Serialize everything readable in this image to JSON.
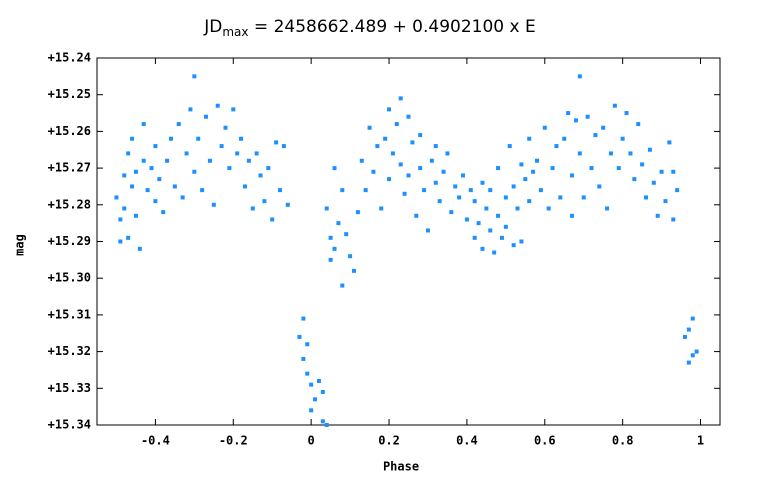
{
  "chart_data": {
    "type": "scatter",
    "title_main": "JD",
    "title_sub": "max",
    "title_rest": " = 2458662.489 + 0.4902100 x E",
    "x_label": "Phase",
    "y_label": "mag",
    "color": "#1e8fff",
    "xlim": [
      -0.55,
      1.05
    ],
    "xticks": [
      -0.4,
      -0.2,
      0,
      0.2,
      0.4,
      0.6,
      0.8,
      1
    ],
    "ylim": [
      15.24,
      15.34
    ],
    "y_inverted": true,
    "yticks": [
      {
        "value": 15.24,
        "label": "+15.24"
      },
      {
        "value": 15.25,
        "label": "+15.25"
      },
      {
        "value": 15.26,
        "label": "+15.26"
      },
      {
        "value": 15.27,
        "label": "+15.27"
      },
      {
        "value": 15.28,
        "label": "+15.28"
      },
      {
        "value": 15.29,
        "label": "+15.29"
      },
      {
        "value": 15.3,
        "label": "+15.30"
      },
      {
        "value": 15.31,
        "label": "+15.31"
      },
      {
        "value": 15.32,
        "label": "+15.32"
      },
      {
        "value": 15.33,
        "label": "+15.33"
      },
      {
        "value": 15.34,
        "label": "+15.34"
      }
    ],
    "x": [
      -0.5,
      -0.49,
      -0.49,
      -0.48,
      -0.48,
      -0.47,
      -0.47,
      -0.46,
      -0.46,
      -0.45,
      -0.45,
      -0.44,
      -0.43,
      -0.43,
      -0.42,
      -0.41,
      -0.4,
      -0.4,
      -0.39,
      -0.38,
      -0.37,
      -0.36,
      -0.35,
      -0.34,
      -0.33,
      -0.32,
      -0.31,
      -0.3,
      -0.3,
      -0.29,
      -0.28,
      -0.27,
      -0.26,
      -0.25,
      -0.24,
      -0.23,
      -0.22,
      -0.21,
      -0.2,
      -0.19,
      -0.18,
      -0.17,
      -0.16,
      -0.15,
      -0.14,
      -0.13,
      -0.12,
      -0.11,
      -0.1,
      -0.09,
      -0.08,
      -0.07,
      -0.06,
      -0.03,
      -0.02,
      -0.02,
      -0.01,
      -0.01,
      0.0,
      0.0,
      0.01,
      0.02,
      0.03,
      0.03,
      0.04,
      0.04,
      0.05,
      0.05,
      0.06,
      0.06,
      0.07,
      0.08,
      0.08,
      0.09,
      0.1,
      0.11,
      0.12,
      0.13,
      0.14,
      0.15,
      0.16,
      0.17,
      0.18,
      0.19,
      0.2,
      0.2,
      0.21,
      0.22,
      0.23,
      0.23,
      0.24,
      0.25,
      0.25,
      0.26,
      0.27,
      0.28,
      0.28,
      0.29,
      0.3,
      0.31,
      0.32,
      0.32,
      0.33,
      0.34,
      0.35,
      0.36,
      0.37,
      0.38,
      0.39,
      0.4,
      0.41,
      0.42,
      0.42,
      0.43,
      0.44,
      0.44,
      0.45,
      0.46,
      0.46,
      0.47,
      0.48,
      0.48,
      0.49,
      0.5,
      0.5,
      0.51,
      0.52,
      0.52,
      0.53,
      0.54,
      0.54,
      0.55,
      0.56,
      0.56,
      0.57,
      0.58,
      0.59,
      0.6,
      0.61,
      0.62,
      0.63,
      0.64,
      0.65,
      0.66,
      0.67,
      0.67,
      0.68,
      0.69,
      0.69,
      0.7,
      0.71,
      0.72,
      0.73,
      0.74,
      0.75,
      0.76,
      0.77,
      0.78,
      0.79,
      0.8,
      0.81,
      0.82,
      0.83,
      0.84,
      0.85,
      0.86,
      0.87,
      0.88,
      0.89,
      0.9,
      0.91,
      0.92,
      0.93,
      0.93,
      0.94,
      0.96,
      0.97,
      0.97,
      0.98,
      0.98,
      0.99
    ],
    "values": [
      15.278,
      15.284,
      15.29,
      15.272,
      15.281,
      15.266,
      15.289,
      15.275,
      15.262,
      15.283,
      15.271,
      15.292,
      15.268,
      15.258,
      15.276,
      15.27,
      15.264,
      15.279,
      15.273,
      15.282,
      15.268,
      15.262,
      15.275,
      15.258,
      15.278,
      15.266,
      15.254,
      15.245,
      15.271,
      15.262,
      15.276,
      15.256,
      15.268,
      15.28,
      15.253,
      15.264,
      15.259,
      15.27,
      15.254,
      15.266,
      15.262,
      15.275,
      15.268,
      15.281,
      15.266,
      15.272,
      15.279,
      15.27,
      15.284,
      15.263,
      15.276,
      15.264,
      15.28,
      15.316,
      15.322,
      15.311,
      15.326,
      15.318,
      15.329,
      15.336,
      15.333,
      15.328,
      15.339,
      15.331,
      15.34,
      15.281,
      15.295,
      15.289,
      15.27,
      15.292,
      15.285,
      15.302,
      15.276,
      15.288,
      15.294,
      15.298,
      15.282,
      15.268,
      15.276,
      15.259,
      15.271,
      15.264,
      15.281,
      15.262,
      15.254,
      15.273,
      15.266,
      15.258,
      15.251,
      15.269,
      15.277,
      15.256,
      15.272,
      15.263,
      15.283,
      15.27,
      15.261,
      15.276,
      15.287,
      15.268,
      15.274,
      15.264,
      15.279,
      15.271,
      15.266,
      15.282,
      15.275,
      15.278,
      15.272,
      15.284,
      15.276,
      15.289,
      15.279,
      15.285,
      15.274,
      15.292,
      15.281,
      15.287,
      15.276,
      15.293,
      15.283,
      15.27,
      15.289,
      15.278,
      15.286,
      15.264,
      15.291,
      15.275,
      15.281,
      15.269,
      15.29,
      15.273,
      15.279,
      15.262,
      15.271,
      15.268,
      15.276,
      15.259,
      15.281,
      15.27,
      15.264,
      15.278,
      15.262,
      15.255,
      15.272,
      15.283,
      15.257,
      15.245,
      15.266,
      15.278,
      15.256,
      15.27,
      15.261,
      15.275,
      15.259,
      15.281,
      15.266,
      15.253,
      15.27,
      15.262,
      15.255,
      15.266,
      15.273,
      15.258,
      15.269,
      15.278,
      15.265,
      15.274,
      15.283,
      15.271,
      15.279,
      15.263,
      15.271,
      15.284,
      15.276,
      15.316,
      15.323,
      15.314,
      15.321,
      15.311,
      15.32
    ]
  }
}
